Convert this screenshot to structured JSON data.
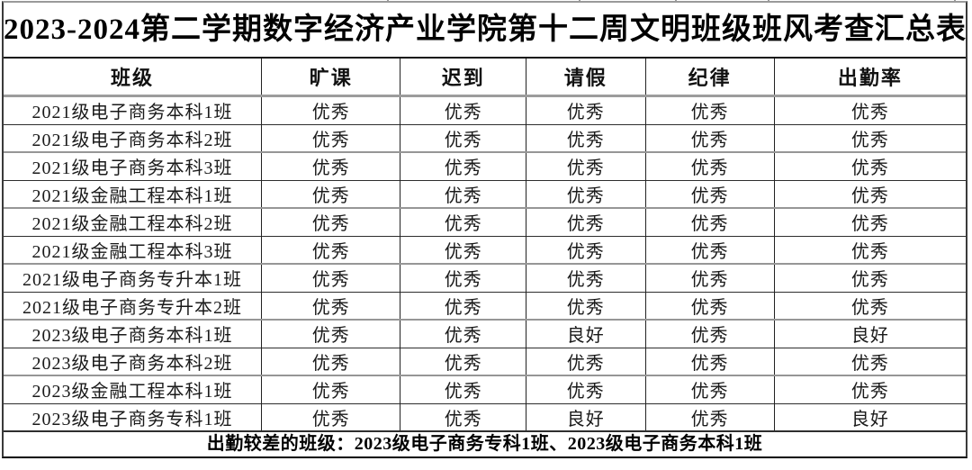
{
  "title": "2023-2024第二学期数字经济产业学院第十二周文明班级班风考查汇总表",
  "table": {
    "headers": [
      "班级",
      "旷课",
      "迟到",
      "请假",
      "纪律",
      "出勤率"
    ],
    "rows": [
      [
        "2021级电子商务本科1班",
        "优秀",
        "优秀",
        "优秀",
        "优秀",
        "优秀"
      ],
      [
        "2021级电子商务本科2班",
        "优秀",
        "优秀",
        "优秀",
        "优秀",
        "优秀"
      ],
      [
        "2021级电子商务本科3班",
        "优秀",
        "优秀",
        "优秀",
        "优秀",
        "优秀"
      ],
      [
        "2021级金融工程本科1班",
        "优秀",
        "优秀",
        "优秀",
        "优秀",
        "优秀"
      ],
      [
        "2021级金融工程本科2班",
        "优秀",
        "优秀",
        "优秀",
        "优秀",
        "优秀"
      ],
      [
        "2021级金融工程本科3班",
        "优秀",
        "优秀",
        "优秀",
        "优秀",
        "优秀"
      ],
      [
        "2021级电子商务专升本1班",
        "优秀",
        "优秀",
        "优秀",
        "优秀",
        "优秀"
      ],
      [
        "2021级电子商务专升本2班",
        "优秀",
        "优秀",
        "优秀",
        "优秀",
        "优秀"
      ],
      [
        "2023级电子商务本科1班",
        "优秀",
        "优秀",
        "良好",
        "优秀",
        "良好"
      ],
      [
        "2023级电子商务本科2班",
        "优秀",
        "优秀",
        "优秀",
        "优秀",
        "优秀"
      ],
      [
        "2023级金融工程本科1班",
        "优秀",
        "优秀",
        "优秀",
        "优秀",
        "优秀"
      ],
      [
        "2023级电子商务专科1班",
        "优秀",
        "优秀",
        "良好",
        "优秀",
        "良好"
      ]
    ],
    "footer": "出勤较差的班级：2023级电子商务专科1班、2023级电子商务本科1班"
  },
  "colors": {
    "text": "#111111",
    "border_dark": "#2e2e2e",
    "border_light": "#969696"
  }
}
